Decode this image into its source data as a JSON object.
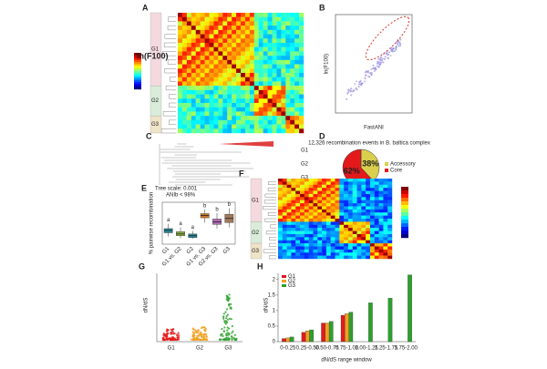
{
  "chart_data": [
    {
      "type": "heatmap",
      "label": "A",
      "colorbar_title": "ln(F100)",
      "groups": [
        "G1",
        "G2",
        "G3"
      ]
    },
    {
      "type": "scatter",
      "label": "B",
      "x_label": "FastANI",
      "y_label": "ln(F100)"
    },
    {
      "type": "tree",
      "label": "C",
      "scale_label": "Tree scale: 0.001",
      "groups": [
        "G1",
        "G2",
        "G3"
      ]
    },
    {
      "type": "pie",
      "label": "D",
      "title": "12,326 recombination events in B. baltica complex",
      "categories": [
        "Accessory",
        "Core"
      ],
      "values": [
        38,
        62
      ],
      "value_labels": [
        "38%",
        "62%"
      ],
      "colors": [
        "#d9cf4c",
        "#e31a1c"
      ]
    },
    {
      "type": "box",
      "label": "E",
      "title": "ANIb < 98%",
      "y_label": "% pairwise recombination",
      "categories": [
        "G1",
        "G1 vs. G2",
        "G2",
        "G1 vs. G3",
        "G2 vs. G3",
        "G3"
      ],
      "low": [
        1.3,
        1.0,
        0.9,
        3.6,
        2.6,
        2.8
      ],
      "q1": [
        1.9,
        1.4,
        1.1,
        4.4,
        3.3,
        3.6
      ],
      "median": [
        2.3,
        1.7,
        1.4,
        4.8,
        3.7,
        4.3
      ],
      "q3": [
        2.6,
        2.1,
        1.7,
        5.1,
        4.2,
        5.0
      ],
      "high": [
        3.4,
        2.8,
        2.2,
        5.8,
        5.2,
        6.0
      ],
      "letters": [
        "a",
        "a",
        "a",
        "b",
        "b",
        "b"
      ],
      "colors": [
        "#2a8a9a",
        "#8bb04a",
        "#2a8a9a",
        "#c8782a",
        "#b06ab0",
        "#a0785a"
      ],
      "ylim": [
        0,
        7
      ]
    },
    {
      "type": "heatmap",
      "label": "F",
      "groups": [
        "G1",
        "G2",
        "G3"
      ]
    },
    {
      "type": "strip",
      "label": "G",
      "y_label": "dN/dS",
      "categories": [
        "G1",
        "G2",
        "G3"
      ],
      "colors": [
        "#e31a1c",
        "#f0a020",
        "#2ca02c"
      ]
    },
    {
      "type": "bar",
      "label": "H",
      "x_label": "dN/dS range window",
      "y_label": "dN/dS",
      "categories": [
        "0-0.25",
        "0.25-0.50",
        "0.50-0.75",
        "0.75-1.00",
        "1.00-1.25",
        "1.25-1.75",
        "1.75-2.00"
      ],
      "series": [
        {
          "name": "G1",
          "color": "#e31a1c",
          "values": [
            0.1,
            0.3,
            0.6,
            0.85,
            null,
            null,
            null
          ]
        },
        {
          "name": "G2",
          "color": "#f0a020",
          "values": [
            0.12,
            0.35,
            0.6,
            0.9,
            null,
            null,
            null
          ]
        },
        {
          "name": "G3",
          "color": "#2ca02c",
          "values": [
            0.15,
            0.38,
            0.65,
            0.95,
            1.25,
            1.4,
            2.15
          ]
        }
      ],
      "ylim": [
        0,
        2.2
      ],
      "yticks": [
        0,
        0.5,
        1,
        1.5,
        2
      ]
    }
  ]
}
